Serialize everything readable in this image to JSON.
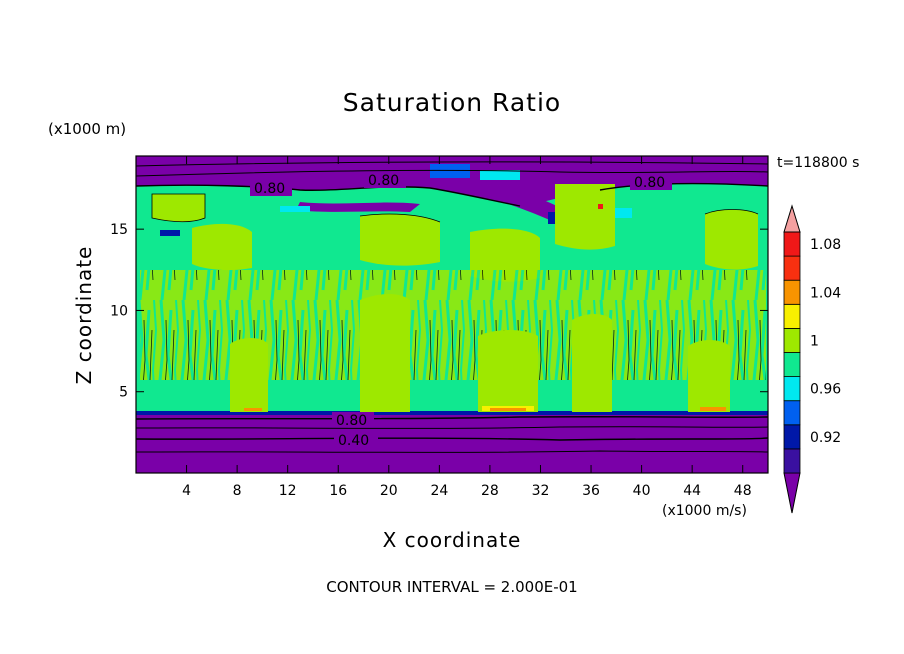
{
  "chart_data": {
    "type": "heatmap",
    "title": "Saturation Ratio",
    "xlabel": "X coordinate",
    "ylabel": "Z coordinate",
    "x_unit": "(x1000 m/s)",
    "y_unit": "(x1000 m)",
    "time_label": "t=118800 s",
    "footer": "CONTOUR INTERVAL = 2.000E-01",
    "xlim": [
      0,
      50
    ],
    "ylim": [
      0,
      19.5
    ],
    "x_ticks": [
      4,
      8,
      12,
      16,
      20,
      24,
      28,
      32,
      36,
      40,
      44,
      48
    ],
    "y_ticks": [
      5,
      10,
      15
    ],
    "colorbar": {
      "levels": [
        0.92,
        0.96,
        1,
        1.04,
        1.08
      ],
      "level_labels": [
        "0.92",
        "0.96",
        "1",
        "1.04",
        "1.08"
      ],
      "colors": [
        "#7a00a8",
        "#3a10a0",
        "#0018a8",
        "#0060f0",
        "#00e8f0",
        "#10e890",
        "#9ee800",
        "#f8f000",
        "#f89400",
        "#f83010",
        "#f01818",
        "#f4a0a0"
      ]
    },
    "contour_labels": [
      "0.80",
      "0.80",
      "0.80",
      "0.80",
      "0.40"
    ]
  }
}
